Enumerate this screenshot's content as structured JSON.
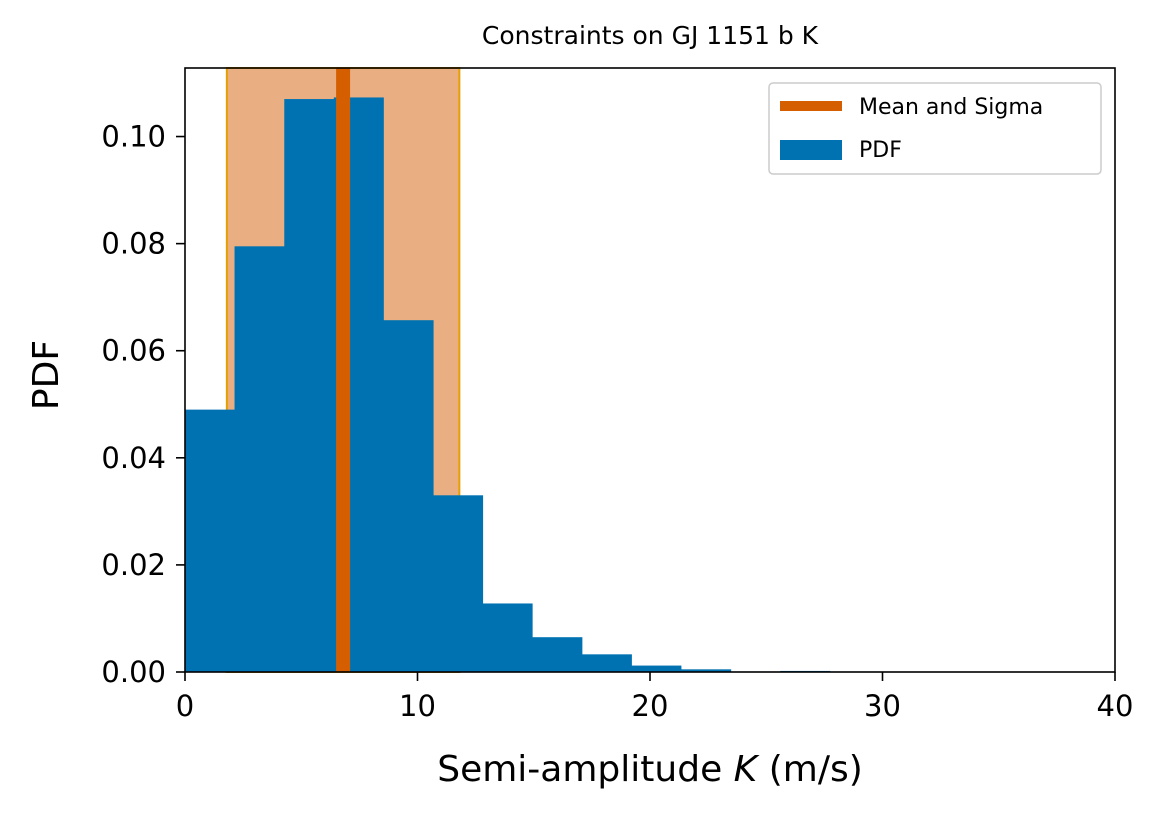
{
  "chart_data": {
    "type": "bar",
    "title": "Constraints on GJ 1151 b K",
    "xlabel_prefix": "Semi-amplitude ",
    "xlabel_var": "K",
    "xlabel_suffix": " (m/s)",
    "ylabel": "PDF",
    "xlim": [
      0,
      40
    ],
    "ylim": [
      0,
      0.1128
    ],
    "xticks": [
      0,
      10,
      20,
      30,
      40
    ],
    "yticks": [
      0.0,
      0.02,
      0.04,
      0.06,
      0.08,
      0.1
    ],
    "xtick_labels": [
      "0",
      "10",
      "20",
      "30",
      "40"
    ],
    "ytick_labels": [
      "0.00",
      "0.02",
      "0.04",
      "0.06",
      "0.08",
      "0.10"
    ],
    "grid": false,
    "legend_position": "top-right",
    "histogram": {
      "name": "PDF",
      "color": "#0072b2",
      "bin_edges": [
        0,
        2.13,
        4.27,
        6.4,
        8.53,
        10.67,
        12.8,
        14.93,
        17.07,
        19.2,
        21.33,
        23.47,
        25.6,
        27.73,
        29.87,
        32.0,
        34.13,
        36.27,
        38.4,
        40.0
      ],
      "values": [
        0.049,
        0.0795,
        0.107,
        0.1073,
        0.0657,
        0.033,
        0.0128,
        0.0065,
        0.0033,
        0.0012,
        0.0005,
        0.0001,
        0.0002,
        0.0001,
        0.0,
        0.0,
        0.0,
        0.0,
        0.0
      ]
    },
    "mean_sigma": {
      "name": "Mean and Sigma",
      "mean": 6.8,
      "lower": 1.8,
      "upper": 11.8,
      "line_color": "#d55e00",
      "band_color": "#e69f00",
      "band_fill": "#e9ae82"
    }
  }
}
